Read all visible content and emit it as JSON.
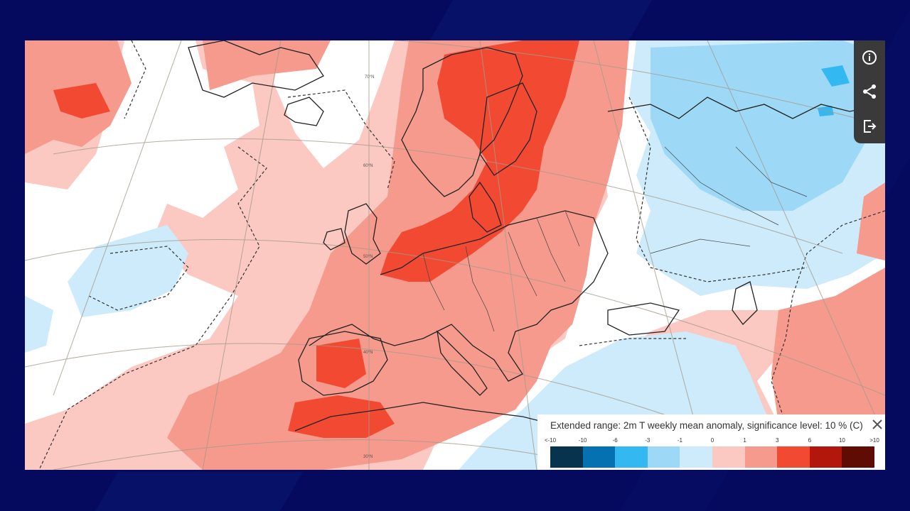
{
  "map": {
    "latitude_labels": [
      "70°N",
      "60°N",
      "50°N",
      "40°N",
      "30°N"
    ]
  },
  "toolbar": {
    "buttons": [
      {
        "id": "info",
        "icon": "info-icon"
      },
      {
        "id": "share",
        "icon": "share-icon"
      },
      {
        "id": "export",
        "icon": "export-icon"
      }
    ]
  },
  "legend": {
    "title": "Extended range: 2m T weekly mean anomaly, significance level: 10 % (C)",
    "ticks": [
      "<-10",
      "-10",
      "-6",
      "-3",
      "-1",
      "0",
      "1",
      "3",
      "6",
      "10",
      ">10"
    ],
    "colors": [
      "#08334f",
      "#0571b0",
      "#33b8f2",
      "#9dd9f7",
      "#cdebfa",
      "#ffffff",
      "#fbc8c2",
      "#f59a8c",
      "#f24a32",
      "#b3160a",
      "#5e0c04"
    ]
  }
}
